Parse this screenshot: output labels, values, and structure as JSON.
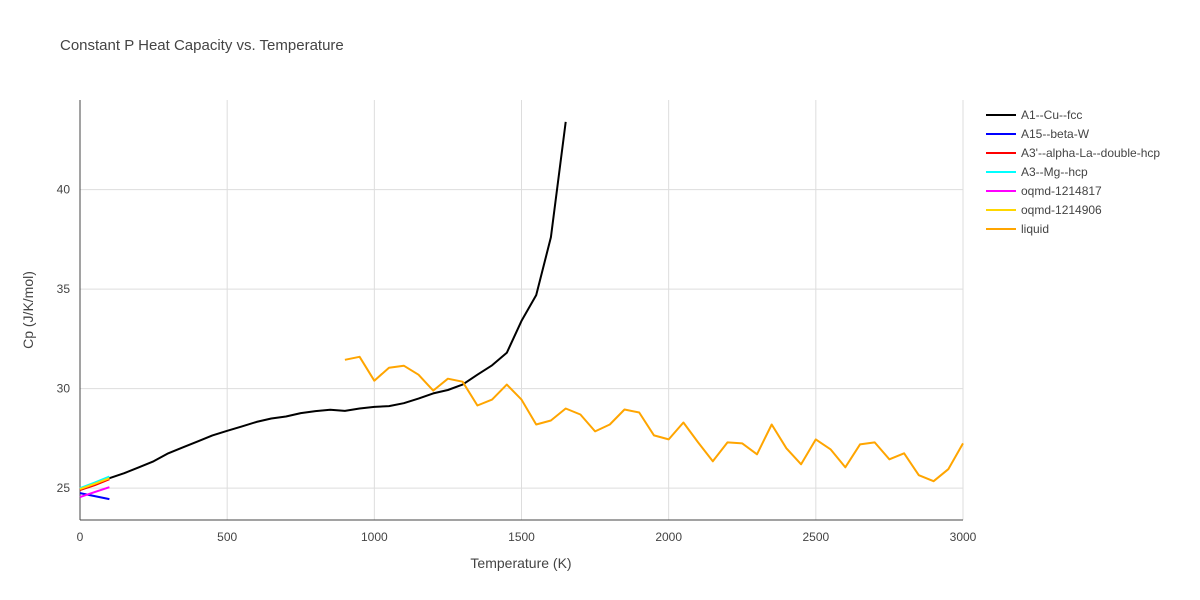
{
  "chart_data": {
    "type": "line",
    "title": "Constant P Heat Capacity vs. Temperature",
    "xlabel": "Temperature (K)",
    "ylabel": "Cp (J/K/mol)",
    "xlim": [
      0,
      3000
    ],
    "ylim": [
      23.4,
      44.5
    ],
    "xticks": [
      0,
      500,
      1000,
      1500,
      2000,
      2500,
      3000
    ],
    "yticks": [
      25,
      30,
      35,
      40
    ],
    "grid": true,
    "legend_position": "right",
    "series": [
      {
        "name": "A1--Cu--fcc",
        "color": "#000000",
        "points": [
          [
            0,
            24.95
          ],
          [
            50,
            25.2
          ],
          [
            100,
            25.5
          ],
          [
            150,
            25.75
          ],
          [
            200,
            26.05
          ],
          [
            250,
            26.35
          ],
          [
            300,
            26.75
          ],
          [
            350,
            27.05
          ],
          [
            400,
            27.35
          ],
          [
            450,
            27.65
          ],
          [
            500,
            27.88
          ],
          [
            550,
            28.1
          ],
          [
            600,
            28.33
          ],
          [
            650,
            28.5
          ],
          [
            700,
            28.6
          ],
          [
            750,
            28.77
          ],
          [
            800,
            28.87
          ],
          [
            850,
            28.94
          ],
          [
            900,
            28.88
          ],
          [
            950,
            29.0
          ],
          [
            1000,
            29.08
          ],
          [
            1050,
            29.12
          ],
          [
            1100,
            29.27
          ],
          [
            1150,
            29.5
          ],
          [
            1200,
            29.76
          ],
          [
            1250,
            29.93
          ],
          [
            1300,
            30.2
          ],
          [
            1350,
            30.7
          ],
          [
            1400,
            31.17
          ],
          [
            1450,
            31.8
          ],
          [
            1500,
            33.4
          ],
          [
            1550,
            34.7
          ],
          [
            1600,
            37.6
          ],
          [
            1650,
            43.4
          ]
        ]
      },
      {
        "name": "A15--beta-W",
        "color": "#0000ff",
        "points": [
          [
            0,
            24.75
          ],
          [
            50,
            24.6
          ],
          [
            100,
            24.45
          ]
        ]
      },
      {
        "name": "A3'--alpha-La--double-hcp",
        "color": "#ff0000",
        "points": [
          [
            0,
            24.9
          ],
          [
            50,
            25.15
          ],
          [
            100,
            25.45
          ]
        ]
      },
      {
        "name": "A3--Mg--hcp",
        "color": "#00ffff",
        "points": [
          [
            0,
            25.0
          ],
          [
            50,
            25.28
          ],
          [
            100,
            25.58
          ]
        ]
      },
      {
        "name": "oqmd-1214817",
        "color": "#ff00ff",
        "points": [
          [
            0,
            24.55
          ],
          [
            50,
            24.8
          ],
          [
            100,
            25.05
          ]
        ]
      },
      {
        "name": "oqmd-1214906",
        "color": "#ffd700",
        "points": [
          [
            0,
            24.95
          ],
          [
            50,
            25.22
          ],
          [
            100,
            25.5
          ]
        ]
      },
      {
        "name": "liquid",
        "color": "#ffa500",
        "points": [
          [
            900,
            31.45
          ],
          [
            950,
            31.6
          ],
          [
            1000,
            30.4
          ],
          [
            1050,
            31.05
          ],
          [
            1100,
            31.15
          ],
          [
            1150,
            30.7
          ],
          [
            1200,
            29.9
          ],
          [
            1250,
            30.5
          ],
          [
            1300,
            30.35
          ],
          [
            1350,
            29.15
          ],
          [
            1400,
            29.45
          ],
          [
            1450,
            30.2
          ],
          [
            1500,
            29.45
          ],
          [
            1550,
            28.2
          ],
          [
            1600,
            28.4
          ],
          [
            1650,
            29.0
          ],
          [
            1700,
            28.7
          ],
          [
            1750,
            27.85
          ],
          [
            1800,
            28.2
          ],
          [
            1850,
            28.95
          ],
          [
            1900,
            28.8
          ],
          [
            1950,
            27.65
          ],
          [
            2000,
            27.45
          ],
          [
            2050,
            28.3
          ],
          [
            2100,
            27.3
          ],
          [
            2150,
            26.35
          ],
          [
            2200,
            27.3
          ],
          [
            2250,
            27.25
          ],
          [
            2300,
            26.7
          ],
          [
            2350,
            28.2
          ],
          [
            2400,
            27.0
          ],
          [
            2450,
            26.2
          ],
          [
            2500,
            27.45
          ],
          [
            2550,
            26.95
          ],
          [
            2600,
            26.05
          ],
          [
            2650,
            27.2
          ],
          [
            2700,
            27.3
          ],
          [
            2750,
            26.45
          ],
          [
            2800,
            26.75
          ],
          [
            2850,
            25.65
          ],
          [
            2900,
            25.35
          ],
          [
            2950,
            25.95
          ],
          [
            3000,
            27.25
          ]
        ]
      }
    ]
  }
}
